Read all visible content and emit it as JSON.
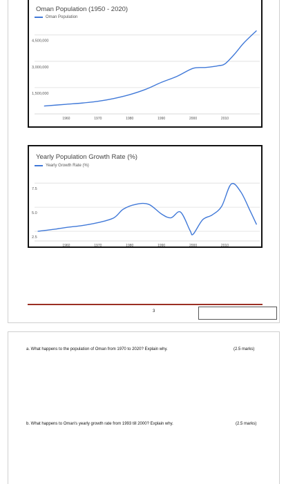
{
  "chart_data": [
    {
      "type": "line",
      "title": "Oman Population (1950 - 2020)",
      "legend": "Oman Population",
      "series": [
        {
          "name": "Oman Population",
          "x": [
            1953,
            1960,
            1965,
            1970,
            1975,
            1980,
            1985,
            1990,
            1995,
            2000,
            2004,
            2008,
            2010,
            2013,
            2016,
            2020
          ],
          "values": [
            450000,
            550000,
            620000,
            720000,
            880000,
            1100000,
            1400000,
            1800000,
            2150000,
            2600000,
            2650000,
            2750000,
            2850000,
            3400000,
            4050000,
            4750000
          ]
        }
      ],
      "y_ticks": [
        "4,500,000",
        "3,000,000",
        "1,500,000"
      ],
      "x_ticks": [
        "1960",
        "1970",
        "1980",
        "1990",
        "2000",
        "2010"
      ],
      "xlim": [
        1950,
        2021
      ],
      "ylim": [
        0,
        5000000
      ],
      "grid": true
    },
    {
      "type": "line",
      "title": "Yearly Population Growth Rate (%)",
      "legend": "Yearly Growth Rate (%)",
      "series": [
        {
          "name": "Yearly Growth Rate (%)",
          "x": [
            1951,
            1956,
            1960,
            1965,
            1970,
            1975,
            1978,
            1982,
            1986,
            1990,
            1993,
            1996,
            1999,
            2000,
            2003,
            2006,
            2009,
            2012,
            2015,
            2018,
            2020
          ],
          "values": [
            2.5,
            2.7,
            2.9,
            3.1,
            3.4,
            3.9,
            4.8,
            5.3,
            5.3,
            4.3,
            3.9,
            4.5,
            2.6,
            2.2,
            3.7,
            4.2,
            5.1,
            7.4,
            6.6,
            4.6,
            3.2
          ]
        }
      ],
      "y_ticks": [
        "7.5",
        "5.0",
        "2.5"
      ],
      "x_ticks": [
        "1960",
        "1970",
        "1980",
        "1990",
        "2000",
        "2010"
      ],
      "xlim": [
        1950,
        2021
      ],
      "ylim": [
        1.5,
        8.3
      ],
      "grid": true
    }
  ],
  "page": {
    "number": "3"
  },
  "questions": [
    {
      "text": "a. What happens to the population of Oman from 1970 to 2020? Explain why.",
      "marks": "(2.5 marks)"
    },
    {
      "text": "b. What happens to Oman's yearly growth rate from 1993 till 2000? Explain why.",
      "marks": "(2.5 marks)"
    }
  ],
  "colors": {
    "line": "#3f78d8",
    "grid": "#dddddd",
    "rule": "#9b2f23"
  }
}
